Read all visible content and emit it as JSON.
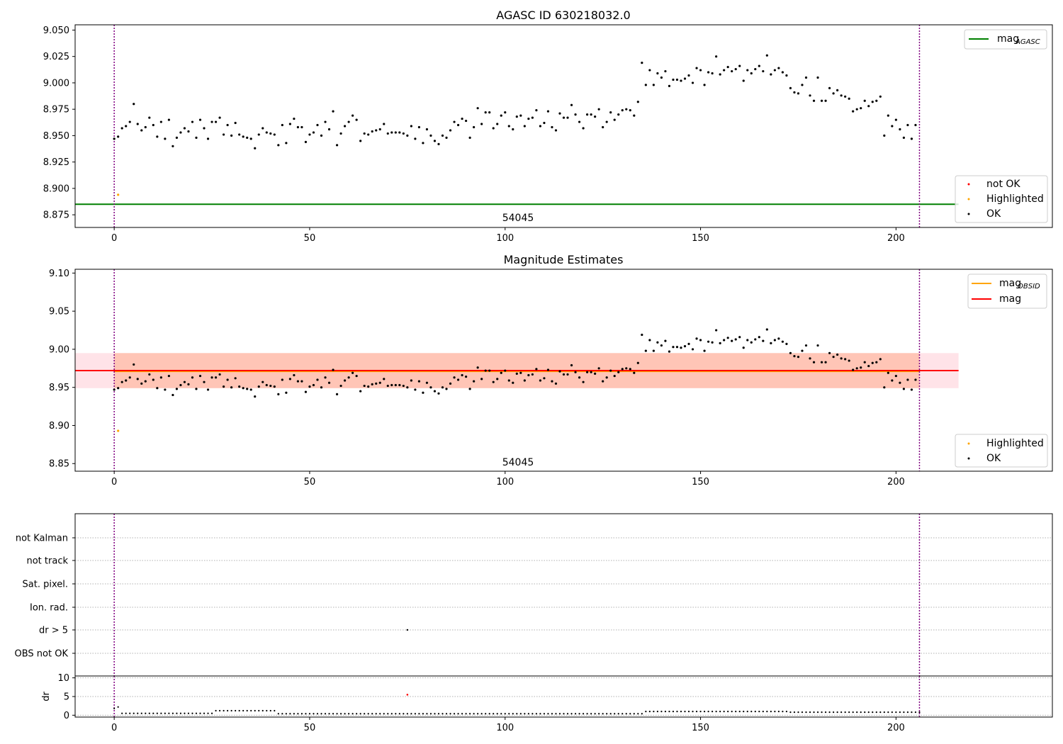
{
  "chart_data": [
    {
      "type": "scatter",
      "title": "AGASC ID 630218032.0",
      "xlabel": "",
      "ylabel": "",
      "xlim": [
        -10,
        240
      ],
      "ylim": [
        8.863,
        9.055
      ],
      "xticks": [
        0,
        50,
        100,
        150,
        200
      ],
      "yticks": [
        "8.875",
        "8.900",
        "8.925",
        "8.950",
        "8.975",
        "9.000",
        "9.025",
        "9.050"
      ],
      "hlines": [
        {
          "name": "mag_AGASC",
          "y": 8.885,
          "x": [
            -10,
            216
          ],
          "color": "#008000"
        }
      ],
      "vlines": [
        {
          "x": 0,
          "color": "#800080"
        },
        {
          "x": 206,
          "color": "#800080"
        }
      ],
      "annotation": {
        "text": "54045",
        "x": 103,
        "y": 8.872
      },
      "highlighted": [
        {
          "x": 1,
          "y": 8.894
        }
      ],
      "series_ref": "mags",
      "legend_lines": {
        "main": "mag",
        "sub": "AGASC"
      },
      "legend_markers": [
        "not OK",
        "Highlighted",
        "OK"
      ],
      "grid": false
    },
    {
      "type": "scatter",
      "title": "Magnitude Estimates",
      "xlabel": "",
      "ylabel": "",
      "xlim": [
        -10,
        240
      ],
      "ylim": [
        8.84,
        9.105
      ],
      "xticks": [
        0,
        50,
        100,
        150,
        200
      ],
      "yticks": [
        "8.85",
        "8.90",
        "8.95",
        "9.00",
        "9.05",
        "9.10"
      ],
      "hlines": [
        {
          "name": "mag_OBSID",
          "y": 8.971,
          "x": [
            0,
            206
          ],
          "color": "#ffa500"
        },
        {
          "name": "mag",
          "y": 8.972,
          "x": [
            -10,
            216
          ],
          "color": "#ff0000"
        }
      ],
      "bands": [
        {
          "y": [
            8.949,
            8.995
          ],
          "x": [
            -10,
            216
          ],
          "color": "#ffc0cb"
        },
        {
          "y": [
            8.949,
            8.995
          ],
          "x": [
            0,
            206
          ],
          "color": "#ffa07a"
        }
      ],
      "vlines": [
        {
          "x": 0,
          "color": "#800080"
        },
        {
          "x": 206,
          "color": "#800080"
        }
      ],
      "annotation": {
        "text": "54045",
        "x": 103,
        "y": 8.848
      },
      "highlighted": [
        {
          "x": 1,
          "y": 8.893
        }
      ],
      "series_ref": "mags",
      "legend_lines": [
        {
          "main": "mag",
          "sub": "OBSID"
        },
        {
          "main": "mag",
          "sub": ""
        }
      ],
      "legend_markers": [
        "Highlighted",
        "OK"
      ],
      "grid": false
    },
    {
      "type": "scatter",
      "title": "",
      "categories": [
        "not Kalman",
        "not track",
        "Sat. pixel.",
        "Ion. rad.",
        "dr > 5",
        "OBS not OK"
      ],
      "flag_points": [
        {
          "x": 75,
          "category": "dr > 5"
        }
      ],
      "xlim": [
        -10,
        240
      ],
      "grid": true
    },
    {
      "type": "scatter",
      "title": "",
      "ylabel": "dr",
      "xlim": [
        -10,
        240
      ],
      "ylim": [
        -0.5,
        10.5
      ],
      "xticks": [
        0,
        50,
        100,
        150,
        200
      ],
      "yticks": [
        "0",
        "5",
        "10"
      ],
      "bad_points": [
        {
          "x": 75,
          "y": 5.5
        }
      ],
      "dr_levels": [
        {
          "from": 0,
          "to": 0,
          "y": 1.8
        },
        {
          "from": 1,
          "to": 1,
          "y": 2.2
        },
        {
          "from": 2,
          "to": 25,
          "y": 0.5
        },
        {
          "from": 26,
          "to": 41,
          "y": 1.2
        },
        {
          "from": 42,
          "to": 135,
          "y": 0.4
        },
        {
          "from": 136,
          "to": 172,
          "y": 1.0
        },
        {
          "from": 173,
          "to": 206,
          "y": 0.8
        }
      ],
      "grid": true
    }
  ],
  "mags": [
    8.947,
    8.949,
    8.957,
    8.959,
    8.963,
    8.98,
    8.961,
    8.955,
    8.958,
    8.967,
    8.96,
    8.949,
    8.963,
    8.947,
    8.965,
    8.94,
    8.948,
    8.953,
    8.957,
    8.954,
    8.963,
    8.948,
    8.965,
    8.957,
    8.947,
    8.963,
    8.963,
    8.967,
    8.951,
    8.96,
    8.95,
    8.962,
    8.951,
    8.949,
    8.948,
    8.947,
    8.938,
    8.951,
    8.957,
    8.953,
    8.952,
    8.951,
    8.941,
    8.96,
    8.943,
    8.961,
    8.966,
    8.958,
    8.958,
    8.944,
    8.951,
    8.953,
    8.96,
    8.95,
    8.963,
    8.956,
    8.973,
    8.941,
    8.952,
    8.959,
    8.963,
    8.969,
    8.965,
    8.945,
    8.952,
    8.951,
    8.954,
    8.955,
    8.956,
    8.961,
    8.952,
    8.953,
    8.953,
    8.953,
    8.952,
    8.95,
    8.959,
    8.947,
    8.958,
    8.943,
    8.956,
    8.95,
    8.945,
    8.942,
    8.95,
    8.948,
    8.955,
    8.963,
    8.96,
    8.966,
    8.964,
    8.948,
    8.958,
    8.976,
    8.961,
    8.972,
    8.972,
    8.957,
    8.961,
    8.969,
    8.972,
    8.959,
    8.956,
    8.968,
    8.969,
    8.959,
    8.966,
    8.967,
    8.974,
    8.959,
    8.962,
    8.973,
    8.958,
    8.955,
    8.971,
    8.967,
    8.967,
    8.979,
    8.97,
    8.963,
    8.957,
    8.97,
    8.97,
    8.968,
    8.975,
    8.958,
    8.963,
    8.972,
    8.965,
    8.97,
    8.974,
    8.975,
    8.974,
    8.969,
    8.982,
    9.019,
    8.998,
    9.012,
    8.998,
    9.009,
    9.005,
    9.011,
    8.997,
    9.003,
    9.003,
    9.002,
    9.004,
    9.007,
    9.0,
    9.014,
    9.012,
    8.998,
    9.01,
    9.009,
    9.025,
    9.008,
    9.012,
    9.015,
    9.011,
    9.013,
    9.016,
    9.002,
    9.012,
    9.009,
    9.013,
    9.016,
    9.011,
    9.026,
    9.008,
    9.012,
    9.014,
    9.01,
    9.007,
    8.995,
    8.991,
    8.99,
    8.998,
    9.005,
    8.988,
    8.983,
    9.005,
    8.983,
    8.983,
    8.995,
    8.99,
    8.993,
    8.988,
    8.987,
    8.985,
    8.973,
    8.975,
    8.976,
    8.983,
    8.978,
    8.982,
    8.983,
    8.987,
    8.95,
    8.969,
    8.959,
    8.965,
    8.956,
    8.948,
    8.96,
    8.947,
    8.96
  ]
}
